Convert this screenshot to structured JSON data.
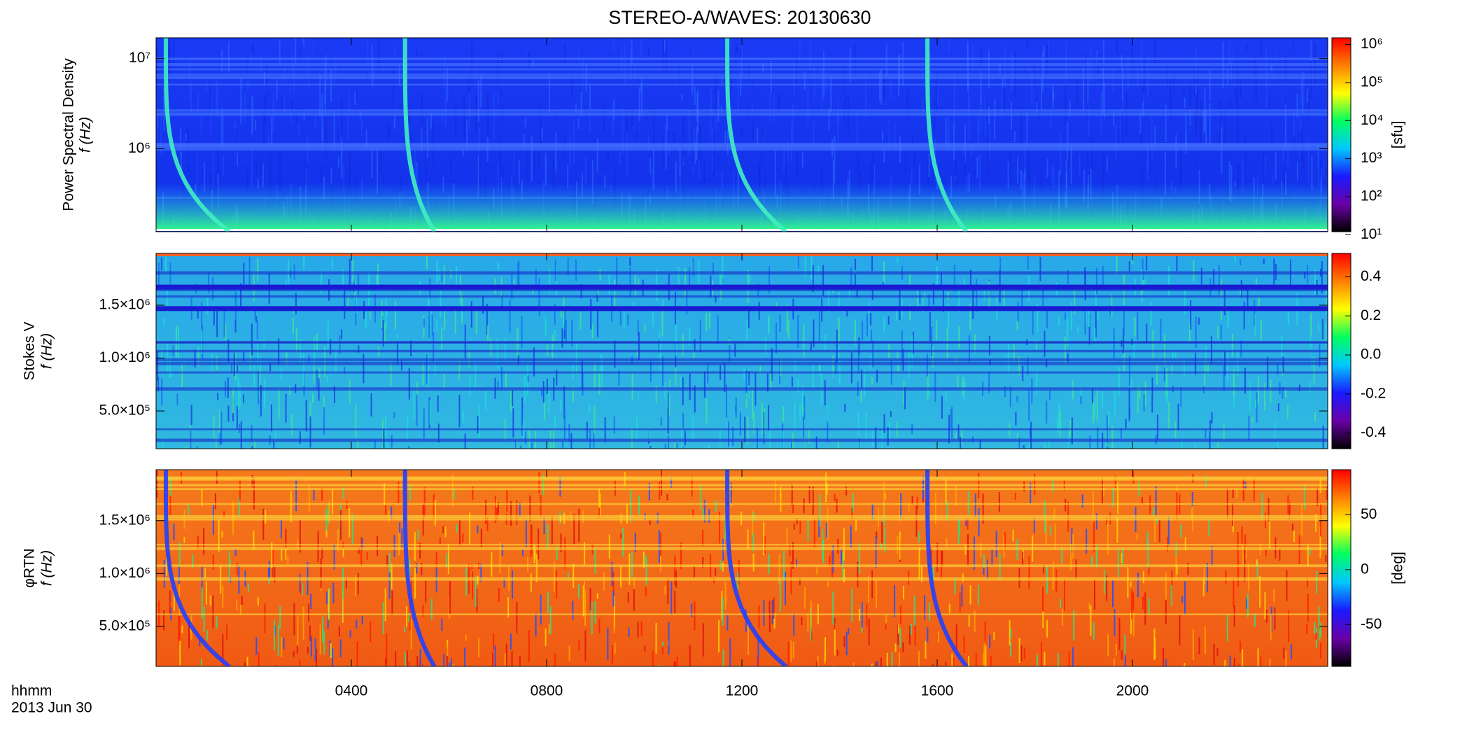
{
  "title": "STEREO-A/WAVES: 20130630",
  "time_axis": {
    "label": [
      "hhmm",
      "2013 Jun 30"
    ],
    "xlim": [
      0,
      24
    ],
    "xticks": [
      {
        "value": 4,
        "label": "0400"
      },
      {
        "value": 8,
        "label": "0800"
      },
      {
        "value": 12,
        "label": "1200"
      },
      {
        "value": 16,
        "label": "1600"
      },
      {
        "value": 20,
        "label": "2000"
      }
    ]
  },
  "colormap": [
    "#000000",
    "#6a00a8",
    "#1a1aff",
    "#00c8ff",
    "#00ff60",
    "#ffff00",
    "#ff8000",
    "#ff0000"
  ],
  "chart_data": [
    {
      "type": "spectrogram",
      "ylabel": [
        "Power Spectral Density",
        "f (Hz)"
      ],
      "yscale": "log",
      "ylim": [
        120000,
        17000000
      ],
      "yticks": [
        {
          "value": 1000000,
          "label": "10⁶"
        },
        {
          "value": 10000000,
          "label": "10⁷"
        }
      ],
      "colorbar": {
        "scale": "log",
        "lim": [
          12,
          1500000
        ],
        "label": "[sfu]",
        "ticks": [
          {
            "value": 10,
            "label": "10¹"
          },
          {
            "value": 100,
            "label": "10²"
          },
          {
            "value": 1000,
            "label": "10³"
          },
          {
            "value": 10000,
            "label": "10⁴"
          },
          {
            "value": 100000,
            "label": "10⁵"
          },
          {
            "value": 1000000,
            "label": "10⁶"
          }
        ]
      }
    },
    {
      "type": "spectrogram",
      "ylabel": [
        "Stokes V",
        "f (Hz)"
      ],
      "yscale": "linear",
      "ylim": [
        143000,
        1990000
      ],
      "yticks": [
        {
          "value": 500000,
          "label": "5.0×10⁵"
        },
        {
          "value": 1000000,
          "label": "1.0×10⁶"
        },
        {
          "value": 1500000,
          "label": "1.5×10⁶"
        }
      ],
      "colorbar": {
        "scale": "linear",
        "lim": [
          -0.48,
          0.52
        ],
        "ticks": [
          -0.4,
          -0.2,
          {
            "value": 0,
            "label": "0.0"
          },
          0.2,
          0.4
        ]
      }
    },
    {
      "type": "spectrogram",
      "ylabel": [
        "φRTN",
        "f (Hz)"
      ],
      "yscale": "linear",
      "ylim": [
        125000,
        1980000
      ],
      "yticks": [
        {
          "value": 500000,
          "label": "5.0×10⁵"
        },
        {
          "value": 1000000,
          "label": "1.0×10⁶"
        },
        {
          "value": 1500000,
          "label": "1.5×10⁶"
        }
      ],
      "colorbar": {
        "scale": "linear",
        "lim": [
          -88,
          91
        ],
        "label": "[deg]",
        "ticks": [
          -50,
          0,
          50
        ]
      }
    }
  ]
}
